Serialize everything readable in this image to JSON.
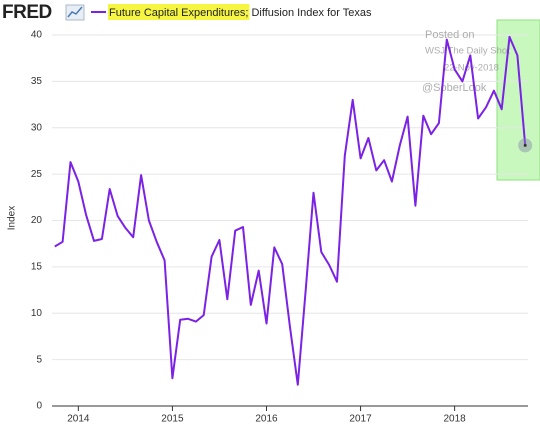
{
  "chart_data": {
    "type": "line",
    "logo": "FRED",
    "y_label": "Index",
    "annotations": [
      "Posted on",
      "WSJ The Daily Shot",
      "22-Nov-2018",
      "@SoberLook"
    ],
    "x": [
      2013.75,
      2013.833,
      2013.917,
      2014,
      2014.083,
      2014.167,
      2014.25,
      2014.333,
      2014.417,
      2014.5,
      2014.583,
      2014.667,
      2014.75,
      2014.833,
      2014.917,
      2015,
      2015.083,
      2015.167,
      2015.25,
      2015.333,
      2015.417,
      2015.5,
      2015.583,
      2015.667,
      2015.75,
      2015.833,
      2015.917,
      2016,
      2016.083,
      2016.167,
      2016.25,
      2016.333,
      2016.417,
      2016.5,
      2016.583,
      2016.667,
      2016.75,
      2016.833,
      2016.917,
      2017,
      2017.083,
      2017.167,
      2017.25,
      2017.333,
      2017.417,
      2017.5,
      2017.583,
      2017.667,
      2017.75,
      2017.833,
      2017.917,
      2018,
      2018.083,
      2018.167,
      2018.25,
      2018.333,
      2018.417,
      2018.5,
      2018.583,
      2018.667,
      2018.75
    ],
    "xlim": [
      2013.72,
      2018.78
    ],
    "xticks": [
      2014,
      2015,
      2016,
      2017,
      2018
    ],
    "series": [
      {
        "name": "Future Capital Expenditures; Diffusion Index for Texas",
        "color": "#7b22e6",
        "values": [
          17.2,
          17.7,
          26.3,
          24.2,
          20.6,
          17.8,
          18.0,
          23.4,
          20.5,
          19.2,
          18.2,
          24.9,
          20.0,
          17.7,
          15.7,
          3.0,
          9.3,
          9.4,
          9.1,
          9.8,
          16.1,
          17.9,
          11.5,
          18.9,
          19.3,
          10.9,
          14.6,
          8.9,
          17.1,
          15.3,
          8.5,
          2.3,
          12.5,
          23.0,
          16.6,
          15.2,
          13.4,
          27.0,
          33.0,
          26.7,
          28.9,
          25.4,
          26.5,
          24.2,
          28.1,
          31.2,
          21.6,
          31.3,
          29.3,
          30.5,
          39.5,
          36.3,
          35.0,
          37.8,
          31.0,
          32.2,
          34.0,
          32.0,
          39.8,
          37.8,
          28.1
        ]
      }
    ],
    "ylim": [
      0,
      40
    ],
    "yticks": [
      0,
      5,
      10,
      15,
      20,
      25,
      30,
      35,
      40
    ],
    "grid": true
  }
}
